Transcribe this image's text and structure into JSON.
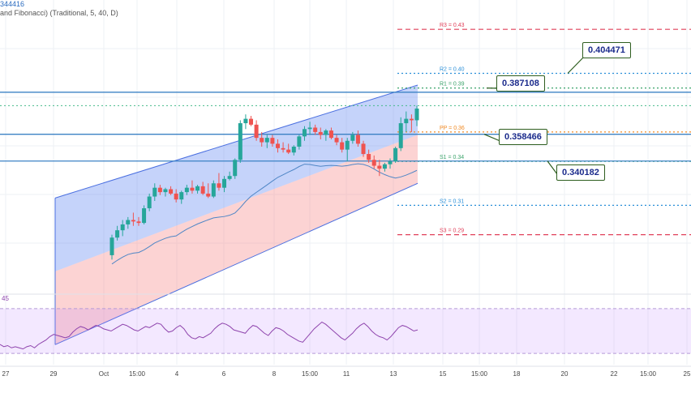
{
  "chart_data": {
    "type": "candlestick",
    "legend": {
      "top_value": "344416",
      "indicator": "and Fibonacci) (Traditional, 5, 40, D)"
    },
    "x_ticks": [
      "27",
      "29",
      "Oct",
      "15:00",
      "4",
      "6",
      "8",
      "15:00",
      "11",
      "13",
      "15",
      "15:00",
      "18",
      "20",
      "22",
      "15:00",
      "25"
    ],
    "pivot_levels": [
      {
        "name": "R3",
        "label": "R3 = 0.43",
        "value": 0.43,
        "color": "#e0405a",
        "style": "dashed"
      },
      {
        "name": "R2",
        "label": "R2 = 0.40",
        "value": 0.4,
        "color": "#2a8fd8",
        "style": "dotted"
      },
      {
        "name": "R1",
        "label": "R1 = 0.39",
        "value": 0.39,
        "color": "#3aa36a",
        "style": "dotted"
      },
      {
        "name": "PP",
        "label": "PP = 0.36",
        "value": 0.36,
        "color": "#f08a24",
        "style": "dotted"
      },
      {
        "name": "S1",
        "label": "S1 = 0.34",
        "value": 0.34,
        "color": "#3aa36a",
        "style": "dotted"
      },
      {
        "name": "S2",
        "label": "S2 = 0.31",
        "value": 0.31,
        "color": "#2a8fd8",
        "style": "dotted"
      },
      {
        "name": "S3",
        "label": "S3 = 0.29",
        "value": 0.29,
        "color": "#e0405a",
        "style": "dashed"
      }
    ],
    "horizontal_lines": [
      {
        "value": 0.387108,
        "label": "0.387108"
      },
      {
        "value": 0.358466,
        "label": "0.358466"
      },
      {
        "value": 0.340182,
        "label": "0.340182"
      }
    ],
    "annotations": [
      "0.404471",
      "0.387108",
      "0.358466",
      "0.340182"
    ],
    "candles": [
      [
        0.276,
        0.29,
        0.273,
        0.288
      ],
      [
        0.288,
        0.296,
        0.286,
        0.293
      ],
      [
        0.293,
        0.3,
        0.289,
        0.297
      ],
      [
        0.297,
        0.302,
        0.294,
        0.3
      ],
      [
        0.3,
        0.305,
        0.296,
        0.299
      ],
      [
        0.299,
        0.302,
        0.296,
        0.298
      ],
      [
        0.298,
        0.31,
        0.297,
        0.308
      ],
      [
        0.308,
        0.318,
        0.306,
        0.316
      ],
      [
        0.316,
        0.325,
        0.313,
        0.322
      ],
      [
        0.322,
        0.324,
        0.317,
        0.319
      ],
      [
        0.319,
        0.322,
        0.316,
        0.321
      ],
      [
        0.321,
        0.323,
        0.317,
        0.318
      ],
      [
        0.318,
        0.321,
        0.312,
        0.314
      ],
      [
        0.314,
        0.32,
        0.311,
        0.319
      ],
      [
        0.319,
        0.324,
        0.317,
        0.322
      ],
      [
        0.322,
        0.327,
        0.318,
        0.32
      ],
      [
        0.32,
        0.324,
        0.318,
        0.323
      ],
      [
        0.323,
        0.326,
        0.317,
        0.318
      ],
      [
        0.318,
        0.325,
        0.315,
        0.316
      ],
      [
        0.316,
        0.327,
        0.315,
        0.325
      ],
      [
        0.325,
        0.332,
        0.32,
        0.322
      ],
      [
        0.322,
        0.33,
        0.319,
        0.328
      ],
      [
        0.328,
        0.333,
        0.327,
        0.33
      ],
      [
        0.33,
        0.342,
        0.328,
        0.341
      ],
      [
        0.341,
        0.368,
        0.339,
        0.366
      ],
      [
        0.366,
        0.372,
        0.362,
        0.369
      ],
      [
        0.369,
        0.371,
        0.364,
        0.365
      ],
      [
        0.365,
        0.368,
        0.354,
        0.356
      ],
      [
        0.356,
        0.36,
        0.35,
        0.353
      ],
      [
        0.353,
        0.358,
        0.349,
        0.356
      ],
      [
        0.356,
        0.358,
        0.35,
        0.352
      ],
      [
        0.352,
        0.355,
        0.346,
        0.349
      ],
      [
        0.349,
        0.353,
        0.346,
        0.348
      ],
      [
        0.348,
        0.352,
        0.345,
        0.346
      ],
      [
        0.346,
        0.351,
        0.344,
        0.35
      ],
      [
        0.35,
        0.358,
        0.348,
        0.357
      ],
      [
        0.357,
        0.364,
        0.354,
        0.362
      ],
      [
        0.362,
        0.367,
        0.358,
        0.363
      ],
      [
        0.363,
        0.365,
        0.358,
        0.36
      ],
      [
        0.36,
        0.363,
        0.355,
        0.358
      ],
      [
        0.358,
        0.362,
        0.354,
        0.361
      ],
      [
        0.361,
        0.363,
        0.355,
        0.356
      ],
      [
        0.356,
        0.358,
        0.351,
        0.353
      ],
      [
        0.353,
        0.356,
        0.346,
        0.348
      ],
      [
        0.348,
        0.356,
        0.34,
        0.354
      ],
      [
        0.354,
        0.36,
        0.352,
        0.358
      ],
      [
        0.358,
        0.361,
        0.35,
        0.352
      ],
      [
        0.352,
        0.354,
        0.343,
        0.345
      ],
      [
        0.345,
        0.348,
        0.339,
        0.341
      ],
      [
        0.341,
        0.344,
        0.335,
        0.337
      ],
      [
        0.337,
        0.341,
        0.33,
        0.335
      ],
      [
        0.335,
        0.339,
        0.333,
        0.338
      ],
      [
        0.338,
        0.342,
        0.335,
        0.34
      ],
      [
        0.34,
        0.35,
        0.339,
        0.349
      ],
      [
        0.349,
        0.37,
        0.347,
        0.366
      ],
      [
        0.366,
        0.374,
        0.36,
        0.369
      ],
      [
        0.369,
        0.372,
        0.36,
        0.368
      ],
      [
        0.368,
        0.378,
        0.364,
        0.376
      ]
    ],
    "y_range": [
      0.25,
      0.45
    ],
    "rsi": {
      "label": "45",
      "values": [
        38,
        36,
        37,
        35,
        36,
        35,
        34,
        36,
        37,
        35,
        38,
        40,
        42,
        45,
        47,
        46,
        45,
        44,
        45,
        49,
        52,
        54,
        53,
        51,
        53,
        55,
        54,
        52,
        51,
        50,
        52,
        54,
        56,
        55,
        53,
        51,
        50,
        52,
        54,
        53,
        55,
        57,
        56,
        52,
        49,
        50,
        53,
        55,
        52,
        47,
        44,
        43,
        45,
        44,
        46,
        48,
        52,
        55,
        57,
        56,
        54,
        51,
        50,
        49,
        48,
        52,
        55,
        54,
        51,
        48,
        46,
        50,
        53,
        52,
        50,
        47,
        45,
        43,
        41,
        40,
        44,
        48,
        52,
        55,
        58,
        56,
        53,
        50,
        47,
        44,
        42,
        45,
        48,
        52,
        55,
        57,
        54,
        50,
        47,
        45,
        44,
        42,
        45,
        49,
        53,
        55,
        54,
        52,
        50,
        51
      ],
      "range": [
        20,
        80
      ],
      "band": [
        30,
        70
      ]
    },
    "grid": true
  }
}
